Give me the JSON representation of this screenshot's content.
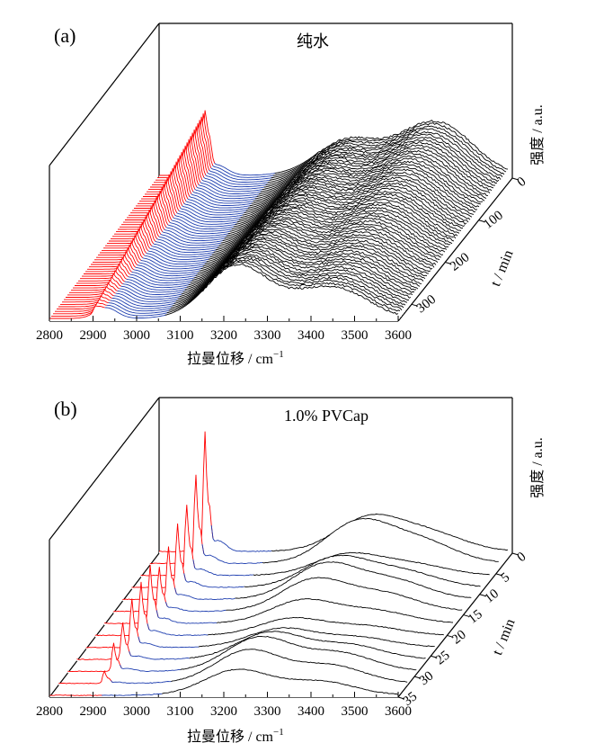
{
  "chart_data": [
    {
      "type": "waterfall",
      "panel_label": "(a)",
      "title": "纯水",
      "xlabel": "拉曼位移 / cm",
      "xlabel_sup": "−1",
      "ylabel": "强度 / a.u.",
      "zlabel": "t / min",
      "xlim": [
        2800,
        3600
      ],
      "x_ticks": [
        "2800",
        "2900",
        "3000",
        "3100",
        "3200",
        "3300",
        "3400",
        "3500",
        "3600"
      ],
      "t_ticks": [
        "0",
        "100",
        "200",
        "300"
      ],
      "t_range": [
        0,
        340
      ],
      "num_spectra": 62,
      "colors": {
        "hydrate_region": "#ff0000",
        "transition": "#1f3fb0",
        "liquid": "#000000"
      },
      "hydrate_peak_wavenumbers": [
        2905,
        2915
      ],
      "liquid_band_peak_wavenumbers": [
        3230,
        3420
      ]
    },
    {
      "type": "waterfall",
      "panel_label": "(b)",
      "title": "1.0% PVCap",
      "xlabel": "拉曼位移 / cm",
      "xlabel_sup": "−1",
      "ylabel": "强度 / a.u.",
      "zlabel": "t / min",
      "xlim": [
        2800,
        3600
      ],
      "x_ticks": [
        "2800",
        "2900",
        "3000",
        "3100",
        "3200",
        "3300",
        "3400",
        "3500",
        "3600"
      ],
      "t_ticks": [
        "0",
        "5",
        "10",
        "15",
        "20",
        "25",
        "30",
        "35"
      ],
      "t_range": [
        0,
        35
      ],
      "num_spectra": 13,
      "colors": {
        "hydrate_region": "#ff0000",
        "transition": "#1f3fb0",
        "liquid": "#000000"
      },
      "hydrate_peak_heights": [
        0,
        0.14,
        0.32,
        0.42,
        0.55,
        0.6,
        0.66,
        0.5,
        0.6,
        0.72,
        0.8,
        1.0,
        1.35
      ],
      "hydrate_peak_wavenumbers": [
        2905,
        2915
      ]
    }
  ]
}
